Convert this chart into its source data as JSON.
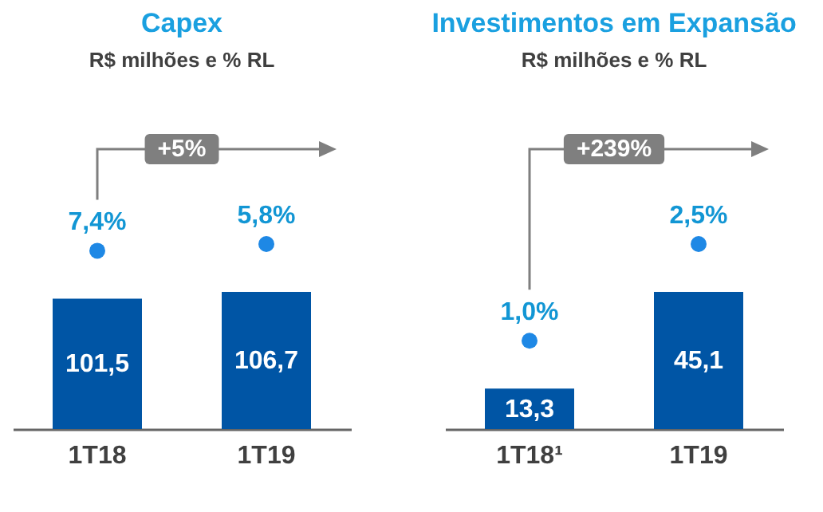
{
  "chart_data": [
    {
      "type": "bar",
      "title": "Capex",
      "subtitle": "R$ milhões e % RL",
      "categories": [
        "1T18",
        "1T19"
      ],
      "annotations": [
        "+5%",
        "7,4%",
        "5,8%"
      ],
      "series": [
        {
          "color": "#0055a5",
          "values": [
            101.5,
            106.7
          ],
          "value_labels": [
            "101,5",
            "106,7"
          ]
        }
      ]
    },
    {
      "type": "bar",
      "title": "Investimentos em Expansão",
      "subtitle": "R$ milhões e % RL",
      "categories": [
        "1T18¹",
        "1T19"
      ],
      "annotations": [
        "+239%",
        "1,0%",
        "2,5%"
      ],
      "series": [
        {
          "color": "#0055a5",
          "values": [
            13.3,
            45.1
          ],
          "value_labels": [
            "13,3",
            "45,1"
          ]
        }
      ]
    }
  ]
}
